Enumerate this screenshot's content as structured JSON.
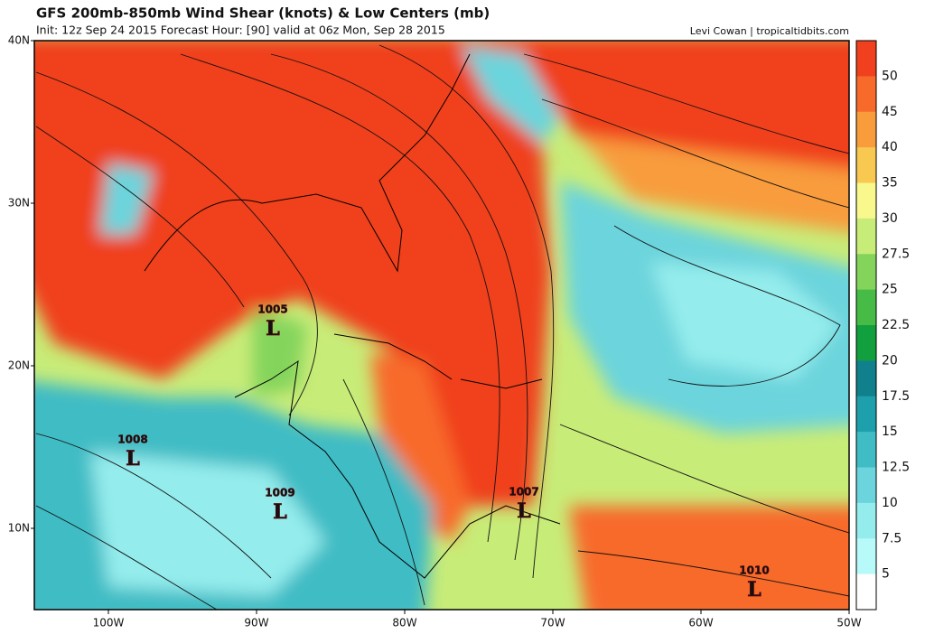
{
  "title": "GFS 200mb-850mb Wind Shear (knots) & Low Centers (mb)",
  "subtitle": "Init: 12z Sep 24 2015   Forecast Hour: [90]   valid at 06z Mon, Sep 28 2015",
  "credit": "Levi Cowan | tropicaltidbits.com",
  "lat_labels": [
    "40N",
    "30N",
    "20N",
    "10N"
  ],
  "lon_labels": [
    "100W",
    "90W",
    "80W",
    "70W",
    "60W",
    "50W"
  ],
  "colorbar": {
    "levels": [
      50,
      45,
      40,
      35,
      30,
      27.5,
      25,
      22.5,
      20,
      17.5,
      15,
      12.5,
      10,
      7.5,
      5
    ],
    "colors": [
      "#f0401e",
      "#f86a2a",
      "#f89c3c",
      "#f8c850",
      "#f8f88c",
      "#c8ec78",
      "#84d45c",
      "#46bc46",
      "#12a03e",
      "#10808c",
      "#1ea0ac",
      "#40bcc4",
      "#6cd4dc",
      "#94ecec",
      "#b8fafa",
      "#ffffff"
    ]
  },
  "lows": [
    {
      "pressure": "1005",
      "label": "L"
    },
    {
      "pressure": "1008",
      "label": "L"
    },
    {
      "pressure": "1009",
      "label": "L"
    },
    {
      "pressure": "1007",
      "label": "L"
    },
    {
      "pressure": "1010",
      "label": "L"
    }
  ]
}
